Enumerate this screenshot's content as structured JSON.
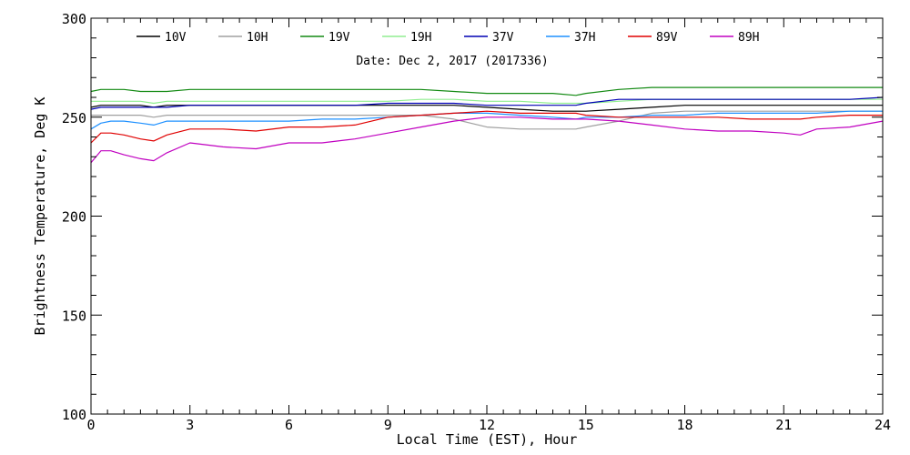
{
  "chart_data": {
    "type": "line",
    "subtitle": "Date: Dec  2, 2017 (2017336)",
    "xlabel": "Local Time (EST), Hour",
    "ylabel": "Brightness Temperature, Deg K",
    "xlim": [
      0,
      24
    ],
    "ylim": [
      100,
      300
    ],
    "x_ticks": [
      0,
      3,
      6,
      9,
      12,
      15,
      18,
      21,
      24
    ],
    "y_ticks": [
      100,
      150,
      200,
      250,
      300
    ],
    "grid": false,
    "legend_position": "top",
    "x": [
      0,
      0.3,
      0.6,
      1,
      1.5,
      1.9,
      2.3,
      3,
      4,
      5,
      6,
      7,
      8,
      9,
      10,
      11,
      12,
      13,
      14,
      14.7,
      15,
      16,
      17,
      18,
      19,
      20,
      21,
      21.5,
      22,
      23,
      24
    ],
    "series": [
      {
        "name": "10V",
        "color": "#000000",
        "values": [
          255,
          256,
          256,
          256,
          256,
          255,
          256,
          256,
          256,
          256,
          256,
          256,
          256,
          256,
          256,
          256,
          255,
          254,
          253,
          253,
          253,
          254,
          255,
          256,
          256,
          256,
          256,
          256,
          256,
          256,
          256
        ]
      },
      {
        "name": "10H",
        "color": "#a0a0a0",
        "values": [
          251,
          251,
          251,
          251,
          251,
          250,
          251,
          251,
          251,
          251,
          251,
          251,
          251,
          251,
          251,
          249,
          245,
          244,
          244,
          244,
          245,
          248,
          252,
          253,
          253,
          253,
          253,
          253,
          253,
          253,
          253
        ]
      },
      {
        "name": "19V",
        "color": "#138a13",
        "values": [
          263,
          264,
          264,
          264,
          263,
          263,
          263,
          264,
          264,
          264,
          264,
          264,
          264,
          264,
          264,
          263,
          262,
          262,
          262,
          261,
          262,
          264,
          265,
          265,
          265,
          265,
          265,
          265,
          265,
          265,
          265
        ]
      },
      {
        "name": "19H",
        "color": "#90ee90",
        "values": [
          258,
          258,
          258,
          258,
          258,
          257,
          258,
          258,
          258,
          258,
          258,
          258,
          258,
          258,
          259,
          259,
          258,
          258,
          257,
          257,
          257,
          258,
          259,
          259,
          259,
          259,
          259,
          259,
          259,
          259,
          259
        ]
      },
      {
        "name": "37V",
        "color": "#0000b4",
        "values": [
          254,
          255,
          255,
          255,
          255,
          255,
          255,
          256,
          256,
          256,
          256,
          256,
          256,
          257,
          257,
          257,
          256,
          256,
          256,
          256,
          257,
          259,
          259,
          259,
          259,
          259,
          259,
          259,
          259,
          259,
          260
        ]
      },
      {
        "name": "37H",
        "color": "#1e90ff",
        "values": [
          244,
          247,
          248,
          248,
          247,
          246,
          248,
          248,
          248,
          248,
          248,
          249,
          249,
          250,
          251,
          252,
          252,
          251,
          250,
          249,
          250,
          250,
          251,
          251,
          252,
          252,
          252,
          252,
          252,
          253,
          253
        ]
      },
      {
        "name": "89V",
        "color": "#e00000",
        "values": [
          237,
          242,
          242,
          241,
          239,
          238,
          241,
          244,
          244,
          243,
          245,
          245,
          246,
          250,
          251,
          252,
          253,
          252,
          252,
          252,
          251,
          250,
          250,
          250,
          250,
          249,
          249,
          249,
          250,
          251,
          251
        ]
      },
      {
        "name": "89H",
        "color": "#c000c0",
        "values": [
          227,
          233,
          233,
          231,
          229,
          228,
          232,
          237,
          235,
          234,
          237,
          237,
          239,
          242,
          245,
          248,
          250,
          250,
          249,
          249,
          249,
          248,
          246,
          244,
          243,
          243,
          242,
          241,
          244,
          245,
          248
        ]
      }
    ]
  }
}
